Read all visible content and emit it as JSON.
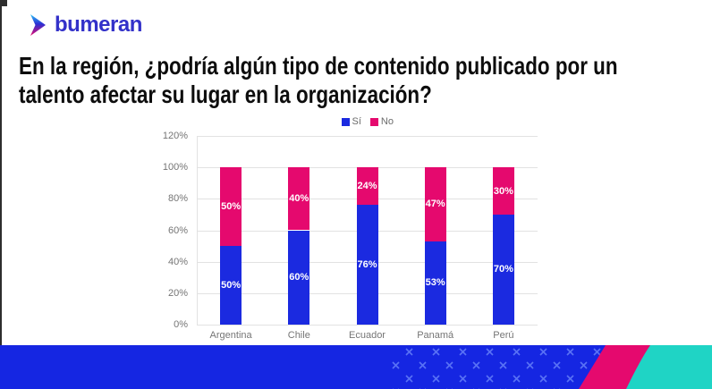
{
  "brand": {
    "logo_text": "bumeran",
    "logo_color": "#3331c9",
    "icon_colors": {
      "top": "#29c5f6",
      "mid": "#2b2fd4",
      "bottom": "#e5096e"
    }
  },
  "title": {
    "line1": "En la región, ¿podría algún tipo de contenido publicado por un",
    "line2": "talento afectar su lugar en la organización?"
  },
  "chart_data": {
    "type": "bar",
    "stacked": true,
    "title": "",
    "xlabel": "",
    "ylabel": "",
    "categories": [
      "Argentina",
      "Chile",
      "Ecuador",
      "Panamá",
      "Perú"
    ],
    "series": [
      {
        "name": "Sí",
        "color": "#1b2ae0",
        "values": [
          50,
          60,
          76,
          53,
          70
        ]
      },
      {
        "name": "No",
        "color": "#e5096e",
        "values": [
          50,
          40,
          24,
          47,
          30
        ]
      }
    ],
    "value_labels": {
      "Sí": [
        "50%",
        "60%",
        "76%",
        "53%",
        "70%"
      ],
      "No": [
        "50%",
        "40%",
        "24%",
        "47%",
        "30%"
      ]
    },
    "ylim": [
      0,
      120
    ],
    "y_ticks": [
      0,
      20,
      40,
      60,
      80,
      100,
      120
    ],
    "y_tick_labels": [
      "0%",
      "20%",
      "40%",
      "60%",
      "80%",
      "100%",
      "120%"
    ],
    "grid": true,
    "legend_position": "top-center"
  },
  "decor": {
    "band_blue": "#1526e2",
    "cross_color": "#5871f5",
    "stripe_pink": "#e5096e",
    "corner_teal": "#1fd4c5"
  }
}
